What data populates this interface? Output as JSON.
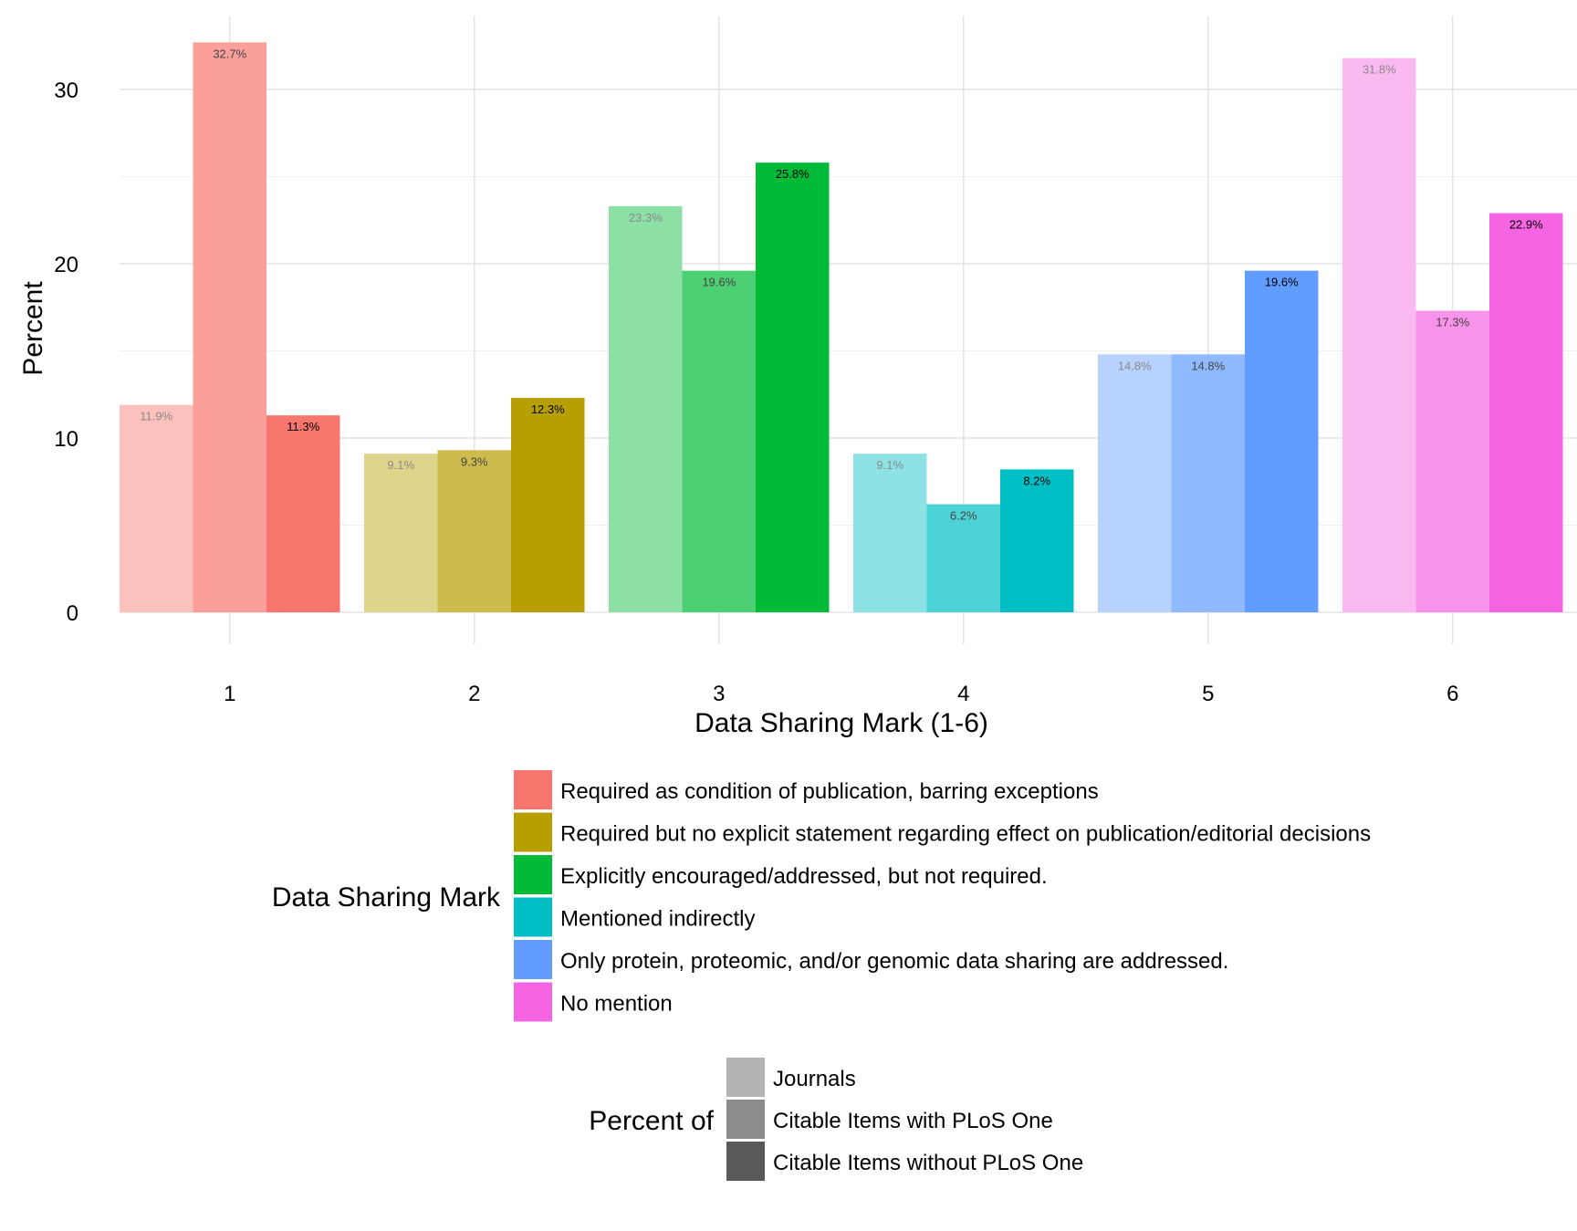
{
  "chart_data": {
    "type": "bar",
    "title": "",
    "xlabel": "Data Sharing Mark (1-6)",
    "ylabel": "Percent",
    "categories": [
      "1",
      "2",
      "3",
      "4",
      "5",
      "6"
    ],
    "yticks": [
      0,
      10,
      20,
      30
    ],
    "ylim": [
      0,
      33.5
    ],
    "grid": true,
    "legend_placement": "bottom",
    "series": [
      {
        "name": "Journals",
        "values": [
          11.9,
          9.1,
          23.3,
          9.1,
          14.8,
          31.8
        ],
        "labels": [
          "11.9%",
          "9.1%",
          "23.3%",
          "9.1%",
          "14.8%",
          "31.8%"
        ]
      },
      {
        "name": "Citable Items with PLoS One",
        "values": [
          32.7,
          9.3,
          19.6,
          6.2,
          14.8,
          17.3
        ],
        "labels": [
          "32.7%",
          "9.3%",
          "19.6%",
          "6.2%",
          "14.8%",
          "17.3%"
        ]
      },
      {
        "name": "Citable Items without PLoS One",
        "values": [
          11.3,
          12.3,
          25.8,
          8.2,
          19.6,
          22.9
        ],
        "labels": [
          "11.3%",
          "12.3%",
          "25.8%",
          "8.2%",
          "19.6%",
          "22.9%"
        ]
      }
    ],
    "category_colors": [
      "#F8766D",
      "#B79F00",
      "#00BA38",
      "#00BFC4",
      "#619CFF",
      "#F564E3"
    ],
    "series_alpha": [
      0.45,
      0.7,
      1.0
    ],
    "legend_mark": {
      "title": "Data Sharing Mark",
      "items": [
        {
          "label": "Required as condition of publication, barring exceptions",
          "color": "#F8766D"
        },
        {
          "label": "Required but no explicit statement regarding effect on publication/editorial decisions",
          "color": "#B79F00"
        },
        {
          "label": "Explicitly encouraged/addressed, but not required.",
          "color": "#00BA38"
        },
        {
          "label": "Mentioned indirectly",
          "color": "#00BFC4"
        },
        {
          "label": "Only protein, proteomic, and/or genomic data sharing are addressed.",
          "color": "#619CFF"
        },
        {
          "label": "No mention",
          "color": "#F564E3"
        }
      ]
    },
    "legend_percent": {
      "title": "Percent of",
      "items": [
        {
          "label": "Journals",
          "color": "#B3B3B3"
        },
        {
          "label": "Citable Items with PLoS One",
          "color": "#8C8C8C"
        },
        {
          "label": "Citable Items without PLoS One",
          "color": "#595959"
        }
      ]
    }
  }
}
